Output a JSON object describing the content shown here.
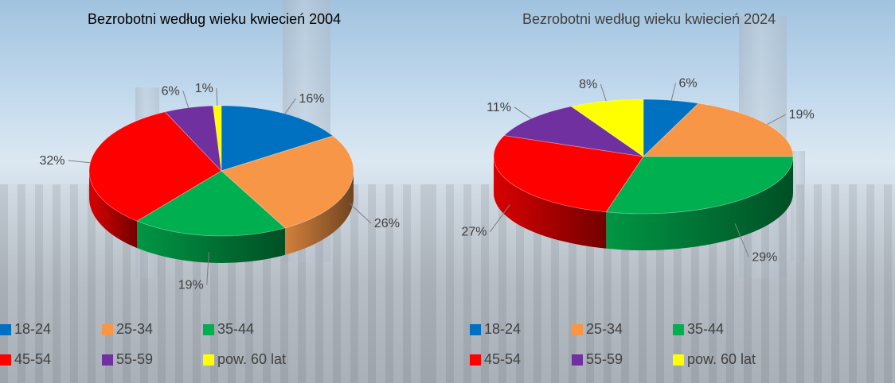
{
  "chart_data": [
    {
      "type": "pie",
      "title": "Bezrobotni według wieku kwiecień 2004",
      "categories": [
        "18-24",
        "25-34",
        "35-44",
        "45-54",
        "55-59",
        "pow. 60 lat"
      ],
      "values": [
        16,
        26,
        19,
        32,
        6,
        1
      ],
      "value_labels": [
        "16%",
        "26%",
        "19%",
        "32%",
        "6%",
        "1%"
      ],
      "colors": [
        "#0070c0",
        "#f79646",
        "#00b050",
        "#ff0000",
        "#7030a0",
        "#ffff00"
      ],
      "style": "3d",
      "legend_position": "bottom"
    },
    {
      "type": "pie",
      "title": "Bezrobotni według wieku kwiecień 2024",
      "categories": [
        "18-24",
        "25-34",
        "35-44",
        "45-54",
        "55-59",
        "pow. 60 lat"
      ],
      "values": [
        6,
        19,
        29,
        27,
        11,
        8
      ],
      "value_labels": [
        "6%",
        "19%",
        "29%",
        "27%",
        "11%",
        "8%"
      ],
      "colors": [
        "#0070c0",
        "#f79646",
        "#00b050",
        "#ff0000",
        "#7030a0",
        "#ffff00"
      ],
      "style": "3d",
      "legend_position": "bottom"
    }
  ]
}
